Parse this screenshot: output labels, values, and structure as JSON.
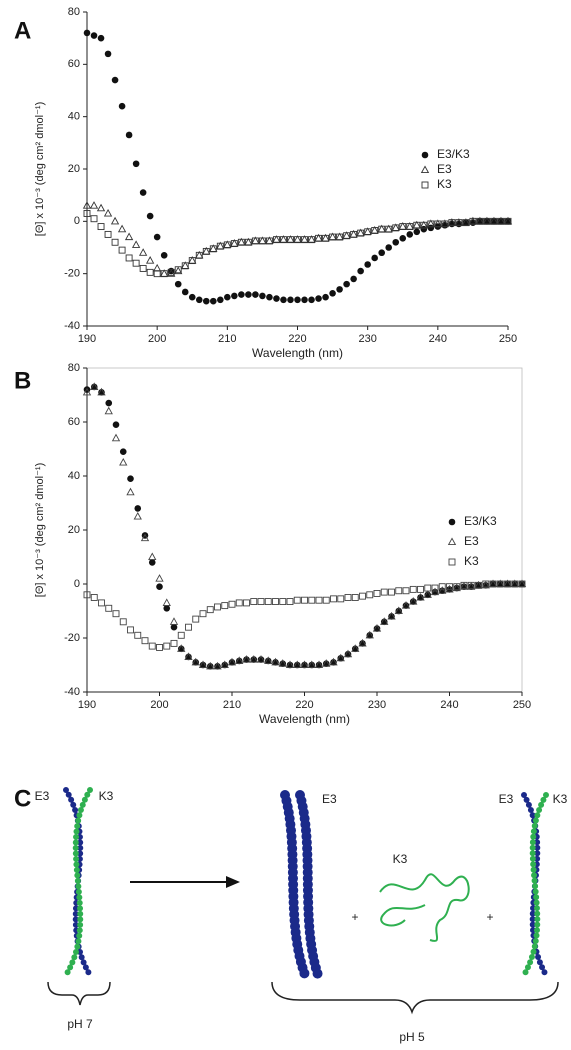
{
  "chart_data": [
    {
      "type": "scatter",
      "panel": "A",
      "xlabel": "Wavelength (nm)",
      "ylabel": "[Θ] x 10⁻³ (deg cm² dmol⁻¹)",
      "x": [
        190,
        191,
        192,
        193,
        194,
        195,
        196,
        197,
        198,
        199,
        200,
        201,
        202,
        203,
        204,
        205,
        206,
        207,
        208,
        209,
        210,
        211,
        212,
        213,
        214,
        215,
        216,
        217,
        218,
        219,
        220,
        221,
        222,
        223,
        224,
        225,
        226,
        227,
        228,
        229,
        230,
        231,
        232,
        233,
        234,
        235,
        236,
        237,
        238,
        239,
        240,
        241,
        242,
        243,
        244,
        245,
        246,
        247,
        248,
        249,
        250
      ],
      "xlim": [
        190,
        250
      ],
      "xticks": [
        190,
        200,
        210,
        220,
        230,
        240,
        250
      ],
      "ylim": [
        -40,
        80
      ],
      "yticks": [
        -40,
        -20,
        0,
        20,
        40,
        60,
        80
      ],
      "legend": "right",
      "frame": false,
      "series": [
        {
          "name": "E3/K3",
          "marker": "circle",
          "color": "#111111",
          "values": [
            72,
            71,
            70,
            64,
            54,
            44,
            33,
            22,
            11,
            2,
            -6,
            -13,
            -19,
            -24,
            -27,
            -29,
            -30,
            -30.5,
            -30.5,
            -30,
            -29,
            -28.5,
            -28,
            -28,
            -28,
            -28.5,
            -29,
            -29.5,
            -30,
            -30,
            -30,
            -30,
            -30,
            -29.5,
            -29,
            -27.5,
            -26,
            -24,
            -22,
            -19,
            -16.5,
            -14,
            -12,
            -10,
            -8,
            -6.5,
            -5,
            -4,
            -3,
            -2.5,
            -2,
            -1.5,
            -1,
            -1,
            -0.5,
            -0.5,
            0,
            0,
            0,
            0,
            0
          ]
        },
        {
          "name": "E3",
          "marker": "triangle",
          "color": "#333333",
          "values": [
            6,
            6,
            5,
            3,
            0,
            -3,
            -6,
            -9,
            -12,
            -15,
            -18,
            -20,
            -20,
            -19,
            -17,
            -15,
            -13,
            -11.5,
            -10.5,
            -9.5,
            -9,
            -8.5,
            -8,
            -8,
            -7.5,
            -7.5,
            -7.5,
            -7,
            -7,
            -7,
            -7,
            -7,
            -7,
            -6.5,
            -6.5,
            -6,
            -6,
            -5.5,
            -5,
            -4.5,
            -4,
            -3.5,
            -3,
            -3,
            -2.5,
            -2,
            -2,
            -1.5,
            -1.5,
            -1,
            -1,
            -1,
            -0.5,
            -0.5,
            -0.5,
            0,
            0,
            0,
            0,
            0,
            0
          ]
        },
        {
          "name": "K3",
          "marker": "square",
          "color": "#333333",
          "values": [
            3,
            1,
            -2,
            -5,
            -8,
            -11,
            -14,
            -16,
            -18,
            -19.5,
            -20,
            -20,
            -19.5,
            -18.5,
            -17,
            -15,
            -13,
            -11.5,
            -10.5,
            -9.5,
            -9,
            -8.5,
            -8,
            -8,
            -7.5,
            -7.5,
            -7.5,
            -7,
            -7,
            -7,
            -7,
            -7,
            -7,
            -6.5,
            -6.5,
            -6,
            -6,
            -5.5,
            -5,
            -4.5,
            -4,
            -3.5,
            -3,
            -3,
            -2.5,
            -2,
            -2,
            -1.5,
            -1.5,
            -1,
            -1,
            -1,
            -0.5,
            -0.5,
            -0.5,
            0,
            0,
            0,
            0,
            0,
            0
          ]
        }
      ]
    },
    {
      "type": "scatter",
      "panel": "B",
      "xlabel": "Wavelength (nm)",
      "ylabel": "[Θ] x 10⁻³ (deg cm² dmol⁻¹)",
      "x": [
        190,
        191,
        192,
        193,
        194,
        195,
        196,
        197,
        198,
        199,
        200,
        201,
        202,
        203,
        204,
        205,
        206,
        207,
        208,
        209,
        210,
        211,
        212,
        213,
        214,
        215,
        216,
        217,
        218,
        219,
        220,
        221,
        222,
        223,
        224,
        225,
        226,
        227,
        228,
        229,
        230,
        231,
        232,
        233,
        234,
        235,
        236,
        237,
        238,
        239,
        240,
        241,
        242,
        243,
        244,
        245,
        246,
        247,
        248,
        249,
        250
      ],
      "xlim": [
        190,
        250
      ],
      "xticks": [
        190,
        200,
        210,
        220,
        230,
        240,
        250
      ],
      "ylim": [
        -40,
        80
      ],
      "yticks": [
        -40,
        -20,
        0,
        20,
        40,
        60,
        80
      ],
      "legend": "right",
      "frame": true,
      "series": [
        {
          "name": "E3/K3",
          "marker": "circle",
          "color": "#111111",
          "values": [
            72,
            73,
            71,
            67,
            59,
            49,
            39,
            28,
            18,
            8,
            -1,
            -9,
            -16,
            -24,
            -27,
            -29,
            -30,
            -30.5,
            -30.5,
            -30,
            -29,
            -28.5,
            -28,
            -28,
            -28,
            -28.5,
            -29,
            -29.5,
            -30,
            -30,
            -30,
            -30,
            -30,
            -29.5,
            -29,
            -27.5,
            -26,
            -24,
            -22,
            -19,
            -16.5,
            -14,
            -12,
            -10,
            -8,
            -6.5,
            -5,
            -4,
            -3,
            -2.5,
            -2,
            -1.5,
            -1,
            -1,
            -0.5,
            -0.5,
            0,
            0,
            0,
            0,
            0
          ]
        },
        {
          "name": "E3",
          "marker": "triangle",
          "color": "#444444",
          "values": [
            71,
            73,
            71,
            64,
            54,
            45,
            34,
            25,
            17,
            10,
            2,
            -7,
            -14,
            -24,
            -27,
            -29,
            -30,
            -30.5,
            -30.5,
            -30,
            -29,
            -28.5,
            -28,
            -28,
            -28,
            -28.5,
            -29,
            -29.5,
            -30,
            -30,
            -30,
            -30,
            -30,
            -29.5,
            -29,
            -27.5,
            -26,
            -24,
            -22,
            -19,
            -16.5,
            -14,
            -12,
            -10,
            -8,
            -6.5,
            -5,
            -4,
            -3,
            -2.5,
            -2,
            -1.5,
            -1,
            -1,
            -0.5,
            -0.5,
            0,
            0,
            0,
            0,
            0
          ]
        },
        {
          "name": "K3",
          "marker": "square",
          "color": "#444444",
          "values": [
            -4,
            -5,
            -7,
            -9,
            -11,
            -14,
            -17,
            -19,
            -21,
            -23,
            -23.5,
            -23,
            -22,
            -19,
            -16,
            -13,
            -11,
            -9.5,
            -8.5,
            -8,
            -7.5,
            -7,
            -7,
            -6.5,
            -6.5,
            -6.5,
            -6.5,
            -6.5,
            -6.5,
            -6,
            -6,
            -6,
            -6,
            -6,
            -5.5,
            -5.5,
            -5,
            -5,
            -4.5,
            -4,
            -3.5,
            -3,
            -3,
            -2.5,
            -2.5,
            -2,
            -2,
            -1.5,
            -1.5,
            -1,
            -1,
            -1,
            -0.5,
            -0.5,
            -0.5,
            0,
            0,
            0,
            0,
            0,
            0
          ]
        }
      ]
    }
  ],
  "diagram": {
    "panel": "C",
    "left": {
      "strand1": "E3",
      "strand2": "K3",
      "condition": "pH 7"
    },
    "right": {
      "bundle": "E3",
      "plus1": "+",
      "coil": "K3",
      "plus2": "+",
      "strand1": "E3",
      "strand2": "K3",
      "condition": "pH 5"
    }
  }
}
